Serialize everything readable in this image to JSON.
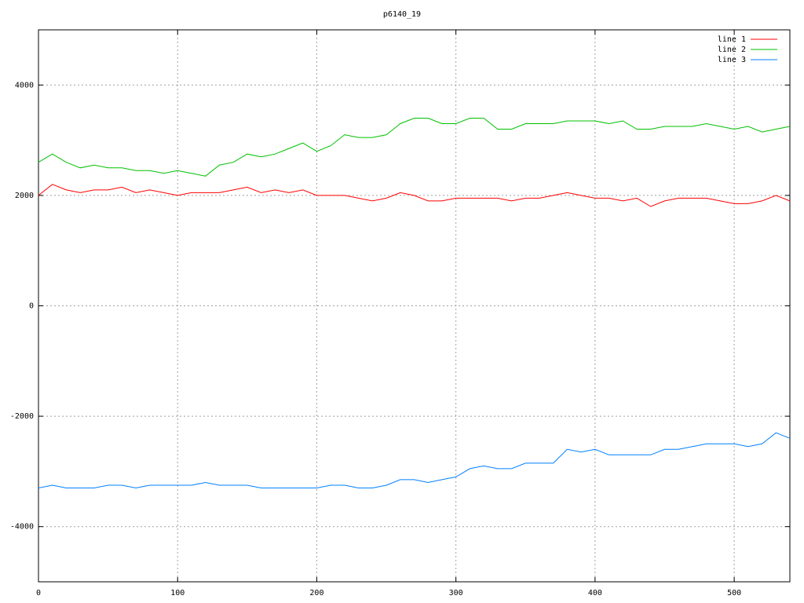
{
  "chart_data": {
    "type": "line",
    "title": "p6140_19",
    "x": [
      0,
      10,
      20,
      30,
      40,
      50,
      60,
      70,
      80,
      90,
      100,
      110,
      120,
      130,
      140,
      150,
      160,
      170,
      180,
      190,
      200,
      210,
      220,
      230,
      240,
      250,
      260,
      270,
      280,
      290,
      300,
      310,
      320,
      330,
      340,
      350,
      360,
      370,
      380,
      390,
      400,
      410,
      420,
      430,
      440,
      450,
      460,
      470,
      480,
      490,
      500,
      510,
      520,
      530,
      540
    ],
    "series": [
      {
        "name": "line 1",
        "color": "#ff0000",
        "values": [
          2000,
          2200,
          2100,
          2050,
          2100,
          2100,
          2150,
          2050,
          2100,
          2050,
          2000,
          2050,
          2050,
          2050,
          2100,
          2150,
          2050,
          2100,
          2050,
          2100,
          2000,
          2000,
          2000,
          1950,
          1900,
          1950,
          2050,
          2000,
          1900,
          1900,
          1950,
          1950,
          1950,
          1950,
          1900,
          1950,
          1950,
          2000,
          2050,
          2000,
          1950,
          1950,
          1900,
          1950,
          1800,
          1900,
          1950,
          1950,
          1950,
          1900,
          1850,
          1850,
          1900,
          2000,
          1900
        ]
      },
      {
        "name": "line 2",
        "color": "#00c000",
        "values": [
          2600,
          2750,
          2600,
          2500,
          2550,
          2500,
          2500,
          2450,
          2450,
          2400,
          2450,
          2400,
          2350,
          2550,
          2600,
          2750,
          2700,
          2750,
          2850,
          2950,
          2800,
          2900,
          3100,
          3050,
          3050,
          3100,
          3300,
          3400,
          3400,
          3300,
          3300,
          3400,
          3400,
          3200,
          3200,
          3300,
          3300,
          3300,
          3350,
          3350,
          3350,
          3300,
          3350,
          3200,
          3200,
          3250,
          3250,
          3250,
          3300,
          3250,
          3200,
          3250,
          3150,
          3200,
          3250
        ]
      },
      {
        "name": "line 3",
        "color": "#0080ff",
        "values": [
          -3300,
          -3250,
          -3300,
          -3300,
          -3300,
          -3250,
          -3250,
          -3300,
          -3250,
          -3250,
          -3250,
          -3250,
          -3200,
          -3250,
          -3250,
          -3250,
          -3300,
          -3300,
          -3300,
          -3300,
          -3300,
          -3250,
          -3250,
          -3300,
          -3300,
          -3250,
          -3150,
          -3150,
          -3200,
          -3150,
          -3100,
          -2950,
          -2900,
          -2950,
          -2950,
          -2850,
          -2850,
          -2850,
          -2600,
          -2650,
          -2600,
          -2700,
          -2700,
          -2700,
          -2700,
          -2600,
          -2600,
          -2550,
          -2500,
          -2500,
          -2500,
          -2550,
          -2500,
          -2300,
          -2400
        ]
      }
    ],
    "xlim": [
      0,
      540
    ],
    "xticks": [
      0,
      100,
      200,
      300,
      400,
      500
    ],
    "ylim": [
      -5000,
      5000
    ],
    "yticks": [
      -4000,
      -2000,
      0,
      2000,
      4000
    ],
    "grid": true,
    "legend": "top-right"
  }
}
